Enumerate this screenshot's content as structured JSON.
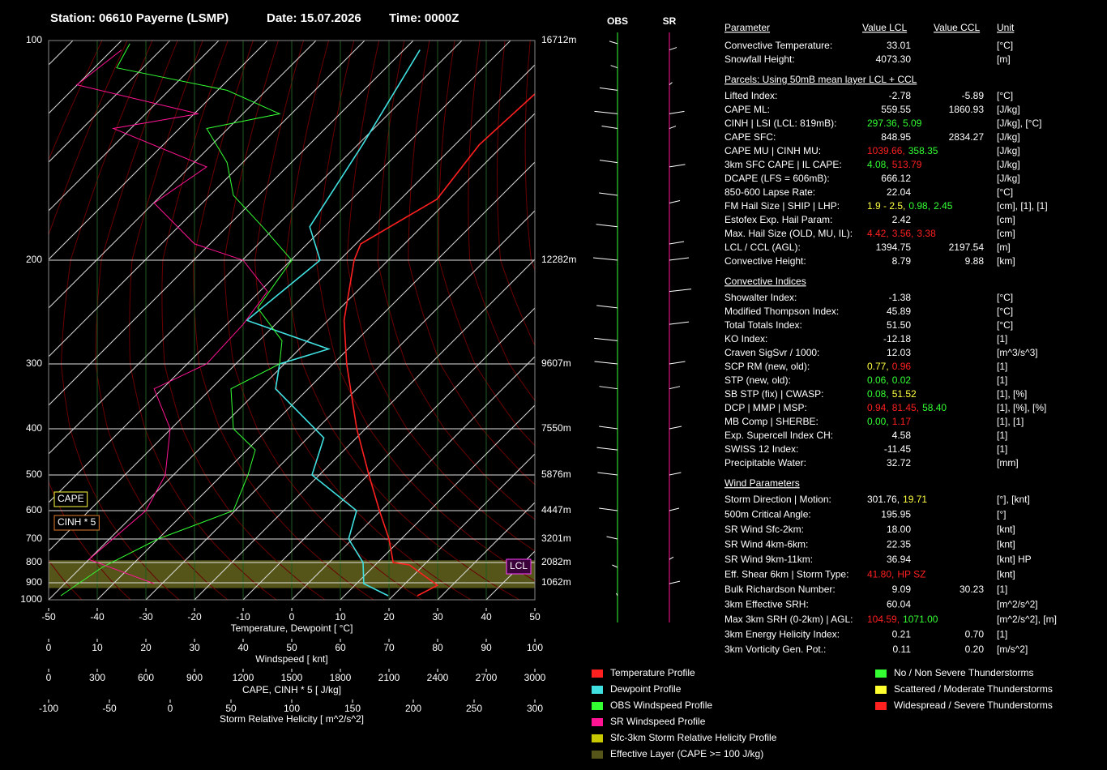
{
  "header": {
    "station": "Station: 06610 Payerne (LSMP)",
    "date": "Date: 15.07.2026",
    "time": "Time: 0000Z"
  },
  "chart_data": {
    "type": "skewt",
    "ylim": [
      1000,
      100
    ],
    "yticks": [
      100,
      200,
      300,
      400,
      500,
      600,
      700,
      800,
      900,
      1000
    ],
    "height_labels": [
      "16712m",
      "12282m",
      "9607m",
      "7550m",
      "5876m",
      "4447m",
      "3201m",
      "2082m",
      "1062m",
      null
    ],
    "xlim": [
      -50,
      50
    ],
    "xticks": [
      -50,
      -40,
      -30,
      -20,
      -10,
      0,
      10,
      20,
      30,
      40,
      50
    ],
    "xlabel": "Temperature, Dewpoint  [ °C]",
    "wind_axis": {
      "label": "Windspeed  [ knt]",
      "lim": [
        0,
        100
      ],
      "ticks": [
        0,
        10,
        20,
        30,
        40,
        50,
        60,
        70,
        80,
        90,
        100
      ]
    },
    "cape_axis": {
      "label": "CAPE, CINH * 5  [ J/kg]",
      "lim": [
        0,
        3000
      ],
      "ticks": [
        0,
        300,
        600,
        900,
        1200,
        1500,
        1800,
        2100,
        2400,
        2700,
        3000
      ]
    },
    "srh_axis": {
      "label": "Storm Relative Helicity  [ m^2/s^2]",
      "lim": [
        -100,
        300
      ],
      "ticks": [
        -100,
        -50,
        0,
        50,
        100,
        150,
        200,
        250,
        300
      ]
    },
    "series": [
      {
        "name": "Temperature Profile",
        "color": "#ff2020",
        "axis": "temperature",
        "pressure": [
          975,
          914,
          811,
          800,
          700,
          600,
          500,
          400,
          300,
          253,
          200,
          190,
          165,
          139,
          118
        ],
        "values": [
          25,
          27,
          17,
          13.2,
          7.5,
          -0.3,
          -9.8,
          -21.8,
          -37.2,
          -46.7,
          -57,
          -59,
          -52.5,
          -55,
          -54
        ]
      },
      {
        "name": "Dewpoint Profile",
        "color": "#40e0e0",
        "axis": "temperature",
        "pressure": [
          975,
          905,
          800,
          700,
          600,
          500,
          418,
          335,
          300,
          283,
          253,
          200,
          180,
          139,
          103
        ],
        "values": [
          19,
          11.5,
          7,
          -0.8,
          -5,
          -21.5,
          -26.7,
          -46.7,
          -51,
          -44,
          -66.7,
          -64,
          -73,
          -79,
          -86.7
        ]
      },
      {
        "name": "OBS Windspeed Profile",
        "color": "#33ff33",
        "axis": "wind",
        "pressure": [
          975,
          823,
          700,
          600,
          500,
          443,
          400,
          335,
          300,
          274,
          241,
          200,
          180,
          163,
          147,
          132,
          126,
          117,
          109,
          101
        ],
        "values": [
          2.5,
          11,
          22.5,
          38,
          41,
          42.5,
          38,
          37.5,
          47.5,
          48,
          43,
          50,
          44,
          38,
          36.7,
          32.5,
          47.5,
          36.7,
          14,
          16.7
        ]
      },
      {
        "name": "SR Windspeed Profile",
        "color": "#ff1493",
        "axis": "wind",
        "pressure": [
          905,
          786,
          600,
          500,
          400,
          335,
          300,
          257,
          226,
          200,
          190,
          167,
          149,
          132,
          126,
          115,
          103
        ],
        "values": [
          21.7,
          8.3,
          20,
          24,
          25,
          21.7,
          32.5,
          40,
          45,
          40,
          30,
          21.7,
          32.5,
          13.3,
          30.8,
          5.8,
          15
        ]
      }
    ],
    "legend_extra": [
      {
        "name": "Sfc-3km Storm Relative Helicity Profile",
        "color": "#c8c800"
      },
      {
        "name": "Effective Layer (CAPE >= 100 J/kg)",
        "color": "#55551a"
      }
    ],
    "severity_legend": [
      {
        "name": "No / Non Severe Thunderstorms",
        "color": "#33ff33"
      },
      {
        "name": "Scattered / Moderate Thunderstorms",
        "color": "#ffff30"
      },
      {
        "name": "Widespread / Severe Thunderstorms",
        "color": "#ff2020"
      }
    ],
    "effective_layer": {
      "pressure": [
        790,
        930
      ],
      "color": "#55551a"
    },
    "annotations": [
      {
        "text": "CAPE",
        "color": "#ffff40"
      },
      {
        "text": "CINH * 5",
        "color": "#e07a2a"
      },
      {
        "text": "LCL",
        "color": "#ff40ff"
      }
    ],
    "wind_columns": [
      {
        "name": "OBS",
        "color": "#33ff33"
      },
      {
        "name": "SR",
        "color": "#ff1493"
      }
    ]
  },
  "parameters": {
    "columns": [
      "Parameter",
      "Value LCL",
      "Value CCL",
      "Unit"
    ],
    "sections": [
      {
        "rows": [
          {
            "label": "Convective Temperature:",
            "lcl": [
              {
                "text": "33.01",
                "color": "#ff2020"
              }
            ],
            "unit": "[°C]"
          },
          {
            "label": "Snowfall Height:",
            "lcl": [
              {
                "text": "4073.30",
                "color": "#ffffff"
              }
            ],
            "unit": "[m]"
          }
        ]
      },
      {
        "title": "Parcels: Using 50mB mean layer LCL + CCL",
        "rows": [
          {
            "label": "Lifted Index:",
            "lcl": [
              {
                "text": "-2.78",
                "color": "#ff2020"
              }
            ],
            "ccl": [
              {
                "text": "-5.89",
                "color": "#ff2020"
              }
            ],
            "unit": "[°C]"
          },
          {
            "label": "CAPE ML:",
            "lcl": [
              {
                "text": "559.55",
                "color": "#ff2020"
              }
            ],
            "ccl": [
              {
                "text": "1860.93",
                "color": "#ff2020"
              }
            ],
            "unit": "[J/kg]"
          },
          {
            "label": "CINH | LSI (LCL: 819mB):",
            "lcl": [
              {
                "text": "297.36,",
                "color": "#33ff33"
              },
              {
                "text": "5.09",
                "color": "#33ff33"
              }
            ],
            "unit": "[J/kg], [°C]"
          },
          {
            "label": "CAPE SFC:",
            "lcl": [
              {
                "text": "848.95",
                "color": "#ff2020"
              }
            ],
            "ccl": [
              {
                "text": "2834.27",
                "color": "#ff2020"
              }
            ],
            "unit": "[J/kg]"
          },
          {
            "label": "CAPE MU | CINH MU:",
            "lcl": [
              {
                "text": "1039.66,",
                "color": "#ff2020"
              },
              {
                "text": "358.35",
                "color": "#33ff33"
              }
            ],
            "unit": "[J/kg]"
          },
          {
            "label": "3km SFC CAPE | IL CAPE:",
            "lcl": [
              {
                "text": "4.08,",
                "color": "#33ff33"
              },
              {
                "text": "513.79",
                "color": "#ff2020"
              }
            ],
            "unit": "[J/kg]"
          },
          {
            "label": "DCAPE (LFS = 606mB):",
            "lcl": [
              {
                "text": "666.12",
                "color": "#ff2020"
              }
            ],
            "unit": "[J/kg]"
          },
          {
            "label": "850-600 Lapse Rate:",
            "lcl": [
              {
                "text": "22.04",
                "color": "#ff2020"
              }
            ],
            "unit": "[°C]"
          },
          {
            "label": "FM Hail Size | SHIP | LHP:",
            "lcl": [
              {
                "text": "1.9 - 2.5,",
                "color": "#ffff40"
              },
              {
                "text": "0.98,",
                "color": "#33ff33"
              },
              {
                "text": "2.45",
                "color": "#33ff33"
              }
            ],
            "unit": "[cm], [1], [1]"
          },
          {
            "label": "Estofex Exp. Hail Param:",
            "lcl": [
              {
                "text": "2.42",
                "color": "#ffff40"
              }
            ],
            "unit": "[cm]"
          },
          {
            "label": "Max. Hail Size (OLD, MU, IL):",
            "lcl": [
              {
                "text": "4.42,",
                "color": "#ff2020"
              },
              {
                "text": "3.56,",
                "color": "#ff2020"
              },
              {
                "text": "3.38",
                "color": "#ff2020"
              }
            ],
            "unit": "[cm]"
          },
          {
            "label": "LCL / CCL (AGL):",
            "lcl": [
              {
                "text": "1394.75",
                "color": "#ffff40"
              }
            ],
            "ccl": [
              {
                "text": "2197.54",
                "color": "#33ff33"
              }
            ],
            "unit": "[m]"
          },
          {
            "label": "Convective Height:",
            "lcl": [
              {
                "text": "8.79",
                "color": "#ff2020"
              }
            ],
            "ccl": [
              {
                "text": "9.88",
                "color": "#ff2020"
              }
            ],
            "unit": "[km]"
          }
        ]
      },
      {
        "title": "Convective Indices",
        "rows": [
          {
            "label": "Showalter Index:",
            "lcl": [
              {
                "text": "-1.38",
                "color": "#ff2020"
              }
            ],
            "unit": "[°C]"
          },
          {
            "label": "Modified Thompson Index:",
            "lcl": [
              {
                "text": "45.89",
                "color": "#ff2020"
              }
            ],
            "unit": "[°C]"
          },
          {
            "label": "Total Totals Index:",
            "lcl": [
              {
                "text": "51.50",
                "color": "#ff2020"
              }
            ],
            "unit": "[°C]"
          },
          {
            "label": "KO Index:",
            "lcl": [
              {
                "text": "-12.18",
                "color": "#ff2020"
              }
            ],
            "unit": "[1]"
          },
          {
            "label": "Craven SigSvr / 1000:",
            "lcl": [
              {
                "text": "12.03",
                "color": "#ff2020"
              }
            ],
            "unit": "[m^3/s^3]"
          },
          {
            "label": "SCP RM (new, old):",
            "lcl": [
              {
                "text": "0.77,",
                "color": "#ffff40"
              },
              {
                "text": "0.96",
                "color": "#ff2020"
              }
            ],
            "unit": "[1]"
          },
          {
            "label": "STP (new, old):",
            "lcl": [
              {
                "text": "0.06,",
                "color": "#33ff33"
              },
              {
                "text": "0.02",
                "color": "#33ff33"
              }
            ],
            "unit": "[1]"
          },
          {
            "label": "SB STP (fix) | CWASP:",
            "lcl": [
              {
                "text": "0.08,",
                "color": "#33ff33"
              },
              {
                "text": "51.52",
                "color": "#ffff40"
              }
            ],
            "unit": "[1], [%]"
          },
          {
            "label": "DCP | MMP | MSP:",
            "lcl": [
              {
                "text": "0.94,",
                "color": "#ff2020"
              },
              {
                "text": "81.45,",
                "color": "#ff2020"
              },
              {
                "text": "58.40",
                "color": "#33ff33"
              }
            ],
            "unit": "[1], [%], [%]"
          },
          {
            "label": "MB Comp | SHERBE:",
            "lcl": [
              {
                "text": "0.00,",
                "color": "#33ff33"
              },
              {
                "text": "1.17",
                "color": "#ff2020"
              }
            ],
            "unit": "[1], [1]"
          },
          {
            "label": "Exp. Supercell Index CH:",
            "lcl": [
              {
                "text": "4.58",
                "color": "#ff2020"
              }
            ],
            "unit": "[1]"
          },
          {
            "label": "SWISS 12 Index:",
            "lcl": [
              {
                "text": "-11.45",
                "color": "#ff2020"
              }
            ],
            "unit": "[1]"
          },
          {
            "label": "Precipitable Water:",
            "lcl": [
              {
                "text": "32.72",
                "color": "#ff2020"
              }
            ],
            "unit": "[mm]"
          }
        ]
      },
      {
        "title": "Wind Parameters",
        "rows": [
          {
            "label": "Storm Direction | Motion:",
            "lcl": [
              {
                "text": "301.76,",
                "color": "#ffffff"
              },
              {
                "text": "19.71",
                "color": "#ffff40"
              }
            ],
            "unit": "[°], [knt]"
          },
          {
            "label": "500m Critical Angle:",
            "lcl": [
              {
                "text": "195.95",
                "color": "#33ff33"
              }
            ],
            "unit": "[°]"
          },
          {
            "label": "SR Wind Sfc-2km:",
            "lcl": [
              {
                "text": "18.00",
                "color": "#ff2020"
              }
            ],
            "unit": "[knt]"
          },
          {
            "label": "SR Wind 4km-6km:",
            "lcl": [
              {
                "text": "22.35",
                "color": "#ff2020"
              }
            ],
            "unit": "[knt]"
          },
          {
            "label": "SR Wind 9km-11km:",
            "lcl": [
              {
                "text": "36.94",
                "color": "#ff2020"
              }
            ],
            "unit": "[knt] HP"
          },
          {
            "label": "Eff. Shear 6km | Storm Type:",
            "lcl": [
              {
                "text": "41.80,",
                "color": "#ff2020"
              },
              {
                "text": "HP SZ",
                "color": "#ff2020"
              }
            ],
            "unit": "[knt]"
          },
          {
            "label": "Bulk Richardson Number:",
            "lcl": [
              {
                "text": "9.09",
                "color": "#ffff40"
              }
            ],
            "ccl": [
              {
                "text": "30.23",
                "color": "#ff2020"
              }
            ],
            "unit": "[1]"
          },
          {
            "label": "3km Effective SRH:",
            "lcl": [
              {
                "text": "60.04",
                "color": "#33ff33"
              }
            ],
            "unit": "[m^2/s^2]"
          },
          {
            "label": "Max 3km SRH (0-2km) | AGL:",
            "lcl": [
              {
                "text": "104.59,",
                "color": "#ff2020"
              },
              {
                "text": "1071.00",
                "color": "#33ff33"
              }
            ],
            "unit": "[m^2/s^2], [m]"
          },
          {
            "label": "3km Energy Helicity Index:",
            "lcl": [
              {
                "text": "0.21",
                "color": "#33ff33"
              }
            ],
            "ccl": [
              {
                "text": "0.70",
                "color": "#33ff33"
              }
            ],
            "unit": "[1]"
          },
          {
            "label": "3km Vorticity Gen. Pot.:",
            "lcl": [
              {
                "text": "0.11",
                "color": "#33ff33"
              }
            ],
            "ccl": [
              {
                "text": "0.20",
                "color": "#ff2020"
              }
            ],
            "unit": "[m/s^2]"
          }
        ]
      }
    ]
  }
}
